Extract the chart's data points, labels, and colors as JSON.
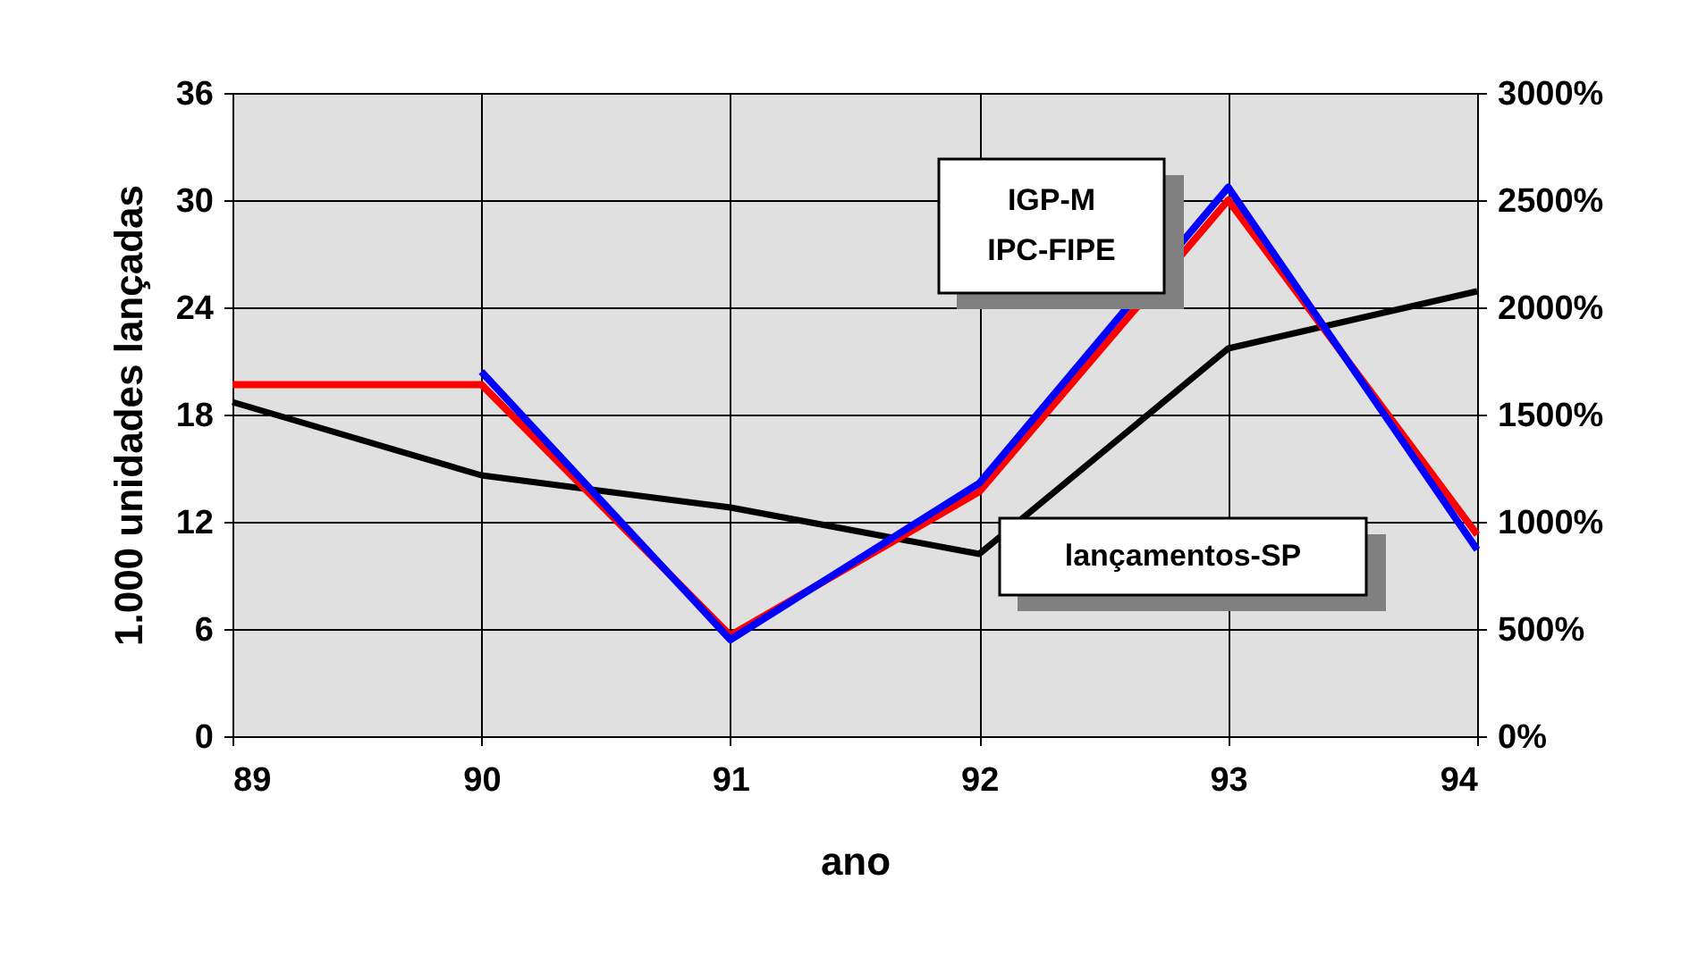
{
  "chart_data": {
    "type": "line",
    "xlabel": "ano",
    "ylabel": "1.000 unidades lançadas",
    "x": [
      89,
      90,
      91,
      92,
      93,
      94
    ],
    "series": [
      {
        "name": "lançamentos-SP",
        "color": "#000000",
        "values": [
          18.7,
          14.6,
          12.8,
          10.2,
          21.7,
          24.9
        ]
      },
      {
        "name": "IGP-M",
        "color": "#ff0000",
        "axis": "y2",
        "values": [
          1640,
          1640,
          470,
          1140,
          2500,
          940
        ]
      },
      {
        "name": "IPC-FIPE",
        "color": "#0000ff",
        "axis": "y2",
        "values": [
          null,
          1700,
          450,
          1180,
          2560,
          870
        ]
      }
    ],
    "xlim": [
      89,
      94
    ],
    "xticks": [
      89,
      90,
      91,
      92,
      93,
      94
    ],
    "ylim": [
      0,
      36
    ],
    "yticks": [
      0,
      6,
      12,
      18,
      24,
      30,
      36
    ],
    "y2lim": [
      0,
      3000
    ],
    "y2ticks": [
      {
        "value": 0,
        "label": "0%"
      },
      {
        "value": 500,
        "label": "500%"
      },
      {
        "value": 1000,
        "label": "1000%"
      },
      {
        "value": 1500,
        "label": "1500%"
      },
      {
        "value": 2000,
        "label": "2000%"
      },
      {
        "value": 2500,
        "label": "2500%"
      },
      {
        "value": 3000,
        "label": "3000%"
      }
    ],
    "grid": true,
    "line_style": "solid",
    "marker": "none"
  }
}
